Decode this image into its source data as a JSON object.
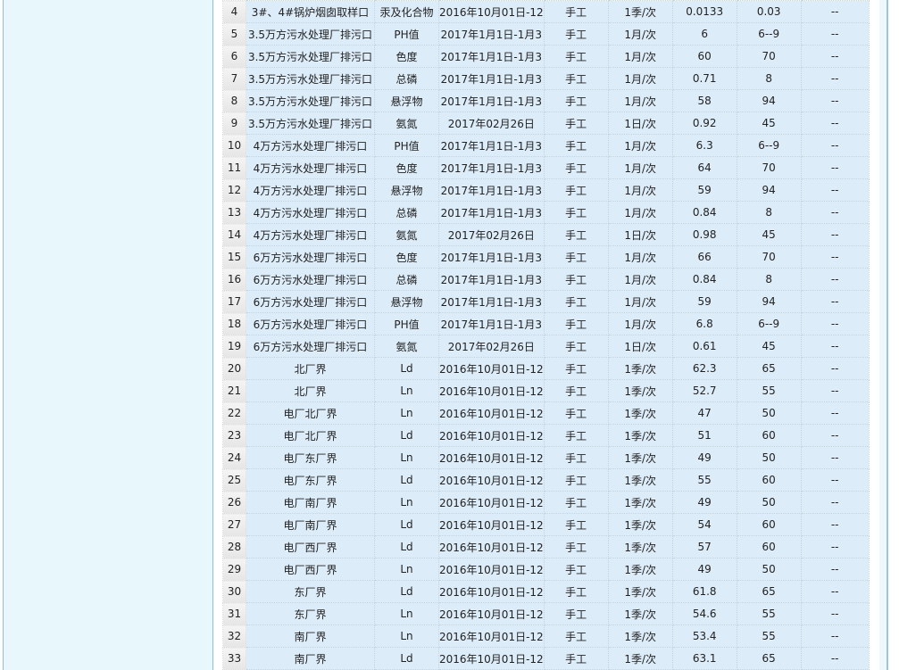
{
  "rows": [
    [
      "4",
      "3#、4#锅炉烟囱取样口",
      "汞及化合物",
      "2016年10月01日-12",
      "手工",
      "1季/次",
      "0.0133",
      "0.03",
      "--"
    ],
    [
      "5",
      "3.5万方污水处理厂排污口",
      "PH值",
      "2017年1月1日-1月3",
      "手工",
      "1月/次",
      "6",
      "6--9",
      "--"
    ],
    [
      "6",
      "3.5万方污水处理厂排污口",
      "色度",
      "2017年1月1日-1月3",
      "手工",
      "1月/次",
      "60",
      "70",
      "--"
    ],
    [
      "7",
      "3.5万方污水处理厂排污口",
      "总磷",
      "2017年1月1日-1月3",
      "手工",
      "1月/次",
      "0.71",
      "8",
      "--"
    ],
    [
      "8",
      "3.5万方污水处理厂排污口",
      "悬浮物",
      "2017年1月1日-1月3",
      "手工",
      "1月/次",
      "58",
      "94",
      "--"
    ],
    [
      "9",
      "3.5万方污水处理厂排污口",
      "氨氮",
      "2017年02月26日",
      "手工",
      "1日/次",
      "0.92",
      "45",
      "--"
    ],
    [
      "10",
      "4万方污水处理厂排污口",
      "PH值",
      "2017年1月1日-1月3",
      "手工",
      "1月/次",
      "6.3",
      "6--9",
      "--"
    ],
    [
      "11",
      "4万方污水处理厂排污口",
      "色度",
      "2017年1月1日-1月3",
      "手工",
      "1月/次",
      "64",
      "70",
      "--"
    ],
    [
      "12",
      "4万方污水处理厂排污口",
      "悬浮物",
      "2017年1月1日-1月3",
      "手工",
      "1月/次",
      "59",
      "94",
      "--"
    ],
    [
      "13",
      "4万方污水处理厂排污口",
      "总磷",
      "2017年1月1日-1月3",
      "手工",
      "1月/次",
      "0.84",
      "8",
      "--"
    ],
    [
      "14",
      "4万方污水处理厂排污口",
      "氨氮",
      "2017年02月26日",
      "手工",
      "1日/次",
      "0.98",
      "45",
      "--"
    ],
    [
      "15",
      "6万方污水处理厂排污口",
      "色度",
      "2017年1月1日-1月3",
      "手工",
      "1月/次",
      "66",
      "70",
      "--"
    ],
    [
      "16",
      "6万方污水处理厂排污口",
      "总磷",
      "2017年1月1日-1月3",
      "手工",
      "1月/次",
      "0.84",
      "8",
      "--"
    ],
    [
      "17",
      "6万方污水处理厂排污口",
      "悬浮物",
      "2017年1月1日-1月3",
      "手工",
      "1月/次",
      "59",
      "94",
      "--"
    ],
    [
      "18",
      "6万方污水处理厂排污口",
      "PH值",
      "2017年1月1日-1月3",
      "手工",
      "1月/次",
      "6.8",
      "6--9",
      "--"
    ],
    [
      "19",
      "6万方污水处理厂排污口",
      "氨氮",
      "2017年02月26日",
      "手工",
      "1日/次",
      "0.61",
      "45",
      "--"
    ],
    [
      "20",
      "北厂界",
      "Ld",
      "2016年10月01日-12",
      "手工",
      "1季/次",
      "62.3",
      "65",
      "--"
    ],
    [
      "21",
      "北厂界",
      "Ln",
      "2016年10月01日-12",
      "手工",
      "1季/次",
      "52.7",
      "55",
      "--"
    ],
    [
      "22",
      "电厂北厂界",
      "Ln",
      "2016年10月01日-12",
      "手工",
      "1季/次",
      "47",
      "50",
      "--"
    ],
    [
      "23",
      "电厂北厂界",
      "Ld",
      "2016年10月01日-12",
      "手工",
      "1季/次",
      "51",
      "60",
      "--"
    ],
    [
      "24",
      "电厂东厂界",
      "Ln",
      "2016年10月01日-12",
      "手工",
      "1季/次",
      "49",
      "50",
      "--"
    ],
    [
      "25",
      "电厂东厂界",
      "Ld",
      "2016年10月01日-12",
      "手工",
      "1季/次",
      "55",
      "60",
      "--"
    ],
    [
      "26",
      "电厂南厂界",
      "Ln",
      "2016年10月01日-12",
      "手工",
      "1季/次",
      "49",
      "50",
      "--"
    ],
    [
      "27",
      "电厂南厂界",
      "Ld",
      "2016年10月01日-12",
      "手工",
      "1季/次",
      "54",
      "60",
      "--"
    ],
    [
      "28",
      "电厂西厂界",
      "Ld",
      "2016年10月01日-12",
      "手工",
      "1季/次",
      "57",
      "60",
      "--"
    ],
    [
      "29",
      "电厂西厂界",
      "Ln",
      "2016年10月01日-12",
      "手工",
      "1季/次",
      "49",
      "50",
      "--"
    ],
    [
      "30",
      "东厂界",
      "Ld",
      "2016年10月01日-12",
      "手工",
      "1季/次",
      "61.8",
      "65",
      "--"
    ],
    [
      "31",
      "东厂界",
      "Ln",
      "2016年10月01日-12",
      "手工",
      "1季/次",
      "54.6",
      "55",
      "--"
    ],
    [
      "32",
      "南厂界",
      "Ln",
      "2016年10月01日-12",
      "手工",
      "1季/次",
      "53.4",
      "55",
      "--"
    ],
    [
      "33",
      "南厂界",
      "Ld",
      "2016年10月01日-12",
      "手工",
      "1季/次",
      "63.1",
      "65",
      "--"
    ]
  ]
}
